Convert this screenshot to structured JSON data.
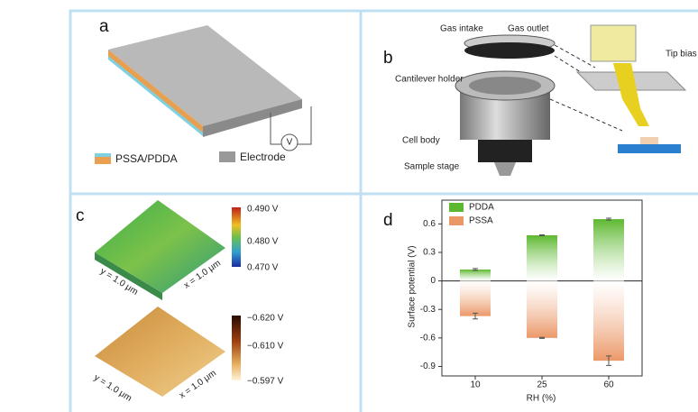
{
  "panels": {
    "a": {
      "label": "a",
      "legend": [
        "PSSA/PDDA",
        "Electrode"
      ],
      "meter": "V"
    },
    "b": {
      "label": "b",
      "parts": [
        "Gas intake",
        "Gas outlet",
        "Cantilever holder",
        "Tip bias",
        "Cell body",
        "Sample stage"
      ]
    },
    "c": {
      "label": "c",
      "top": {
        "colorbar": [
          "0.490 V",
          "0.480 V",
          "0.470 V"
        ],
        "y_axis": "y = 1.0 μm",
        "x_axis": "x = 1.0 μm"
      },
      "bottom": {
        "colorbar": [
          "−0.620 V",
          "−0.610 V",
          "−0.597 V"
        ],
        "y_axis": "y = 1.0 μm",
        "x_axis": "x = 1.0 μm"
      }
    },
    "d": {
      "label": "d"
    }
  },
  "chart_data": {
    "type": "bar",
    "ylabel": "Surface potential (V)",
    "xlabel": "RH (%)",
    "categories": [
      "10",
      "25",
      "60"
    ],
    "series": [
      {
        "name": "PDDA",
        "color": "#5cb82e",
        "values": [
          0.12,
          0.48,
          0.65
        ],
        "errors": [
          0.01,
          0.005,
          0.01
        ]
      },
      {
        "name": "PSSA",
        "color": "#eb9868",
        "values": [
          -0.37,
          -0.6,
          -0.84
        ],
        "errors": [
          0.03,
          0.005,
          0.05
        ]
      }
    ],
    "ylim": [
      -1.0,
      0.85
    ],
    "yticks": [
      0.6,
      0.3,
      0,
      -0.3,
      -0.6,
      -0.9
    ],
    "legend": "upper left"
  }
}
